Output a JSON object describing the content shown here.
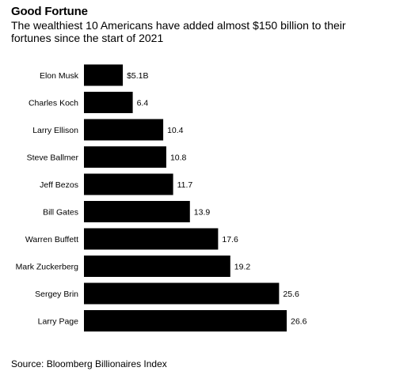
{
  "header": {
    "title": "Good Fortune",
    "subtitle": "The wealthiest 10 Americans have added almost $150 billion to their fortunes since the start of 2021"
  },
  "footer": {
    "source": "Source: Bloomberg Billionaires Index"
  },
  "chart_data": {
    "type": "bar",
    "orientation": "horizontal",
    "categories": [
      "Elon Musk",
      "Charles Koch",
      "Larry Ellison",
      "Steve Ballmer",
      "Jeff Bezos",
      "Bill Gates",
      "Warren Buffett",
      "Mark Zuckerberg",
      "Sergey Brin",
      "Larry Page"
    ],
    "values": [
      5.1,
      6.4,
      10.4,
      10.8,
      11.7,
      13.9,
      17.6,
      19.2,
      25.6,
      26.6
    ],
    "value_labels": [
      "$5.1B",
      "6.4",
      "10.4",
      "10.8",
      "11.7",
      "13.9",
      "17.6",
      "19.2",
      "25.6",
      "26.6"
    ],
    "title": "Good Fortune",
    "xlim": [
      0,
      26.6
    ],
    "grid": false,
    "bar_color": "#000000"
  }
}
